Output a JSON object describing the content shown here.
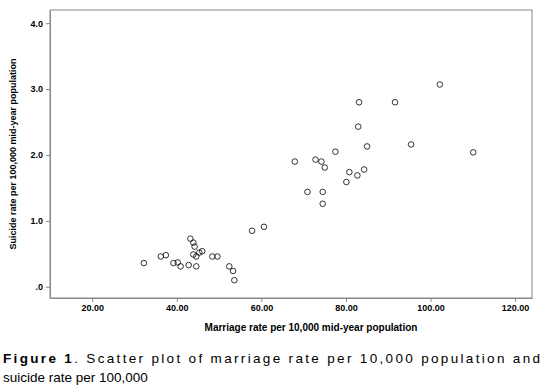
{
  "chart_data": {
    "type": "scatter",
    "x_label": "Marriage rate per 10,000 mid-year population",
    "y_label": "Suicide rate per 100,000 mid-year population",
    "color": "#000000",
    "marker": "circle-open",
    "grid": false,
    "x": [
      32.2,
      36.2,
      37.4,
      39.2,
      40.2,
      40.9,
      43.2,
      43.9,
      44.2,
      42.8,
      43.9,
      44.6,
      45.3,
      46.0,
      44.6,
      48.4,
      49.6,
      52.4,
      53.3,
      53.6,
      57.8,
      60.6,
      67.9,
      70.9,
      72.8,
      74.2,
      74.5,
      74.5,
      75.0,
      77.5,
      80.1,
      80.8,
      82.7,
      82.9,
      83.1,
      84.3,
      85.0,
      91.6,
      95.4,
      102.2,
      110.1
    ],
    "values": [
      0.36,
      0.46,
      0.48,
      0.36,
      0.37,
      0.31,
      0.73,
      0.67,
      0.61,
      0.33,
      0.49,
      0.46,
      0.52,
      0.54,
      0.31,
      0.46,
      0.46,
      0.31,
      0.24,
      0.1,
      0.85,
      0.91,
      1.9,
      1.44,
      1.93,
      1.9,
      1.44,
      1.26,
      1.81,
      2.05,
      1.59,
      1.74,
      1.69,
      2.43,
      2.8,
      1.78,
      2.13,
      2.8,
      2.16,
      3.07,
      2.04
    ],
    "xlim": [
      10,
      124
    ],
    "xticks": [
      {
        "value": 20,
        "label": "20.00"
      },
      {
        "value": 40,
        "label": "40.00"
      },
      {
        "value": 60,
        "label": "60.00"
      },
      {
        "value": 80,
        "label": "80.00"
      },
      {
        "value": 100,
        "label": "100.00"
      },
      {
        "value": 120,
        "label": "120.00"
      }
    ],
    "ylim": [
      -0.17,
      4.2
    ],
    "yticks": [
      {
        "value": 0,
        "label": ".0"
      },
      {
        "value": 1,
        "label": "1.0"
      },
      {
        "value": 2,
        "label": "2.0"
      },
      {
        "value": 3,
        "label": "3.0"
      },
      {
        "value": 4,
        "label": "4.0"
      }
    ]
  },
  "caption": {
    "label": "Figure 1",
    "lines": [
      ". Scatter plot of marriage rate per 10,000 population and",
      "suicide rate per 100,000"
    ]
  }
}
